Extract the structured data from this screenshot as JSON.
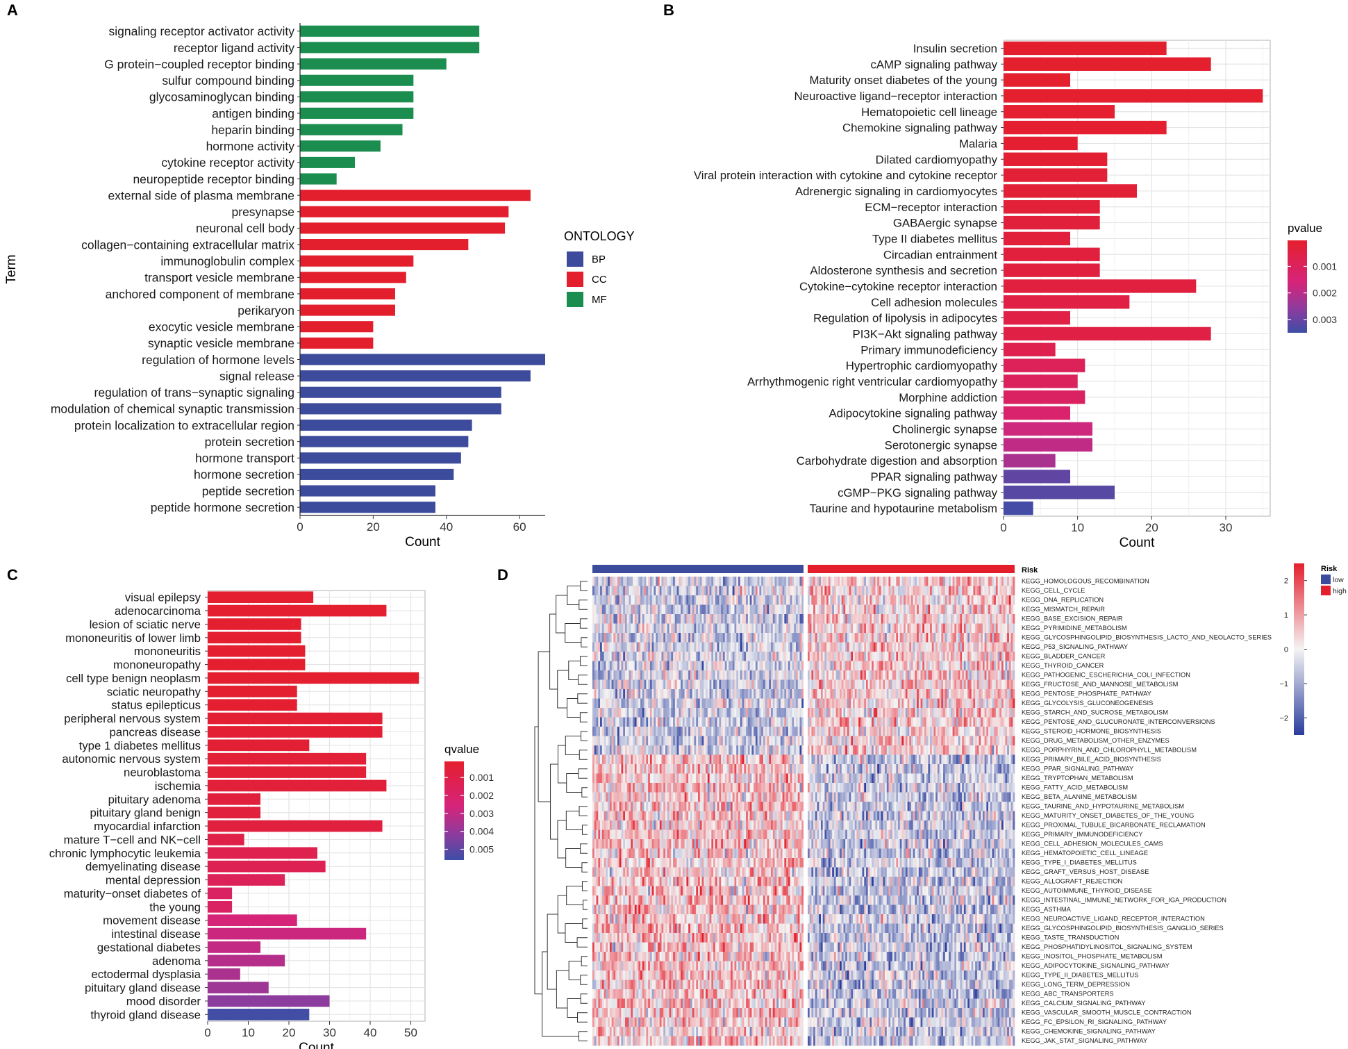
{
  "figure": {
    "panel_labels": [
      "A",
      "B",
      "C",
      "D"
    ]
  },
  "chart_data": [
    {
      "id": "A",
      "type": "bar",
      "orientation": "horizontal",
      "ylabel": "Term",
      "xlabel": "Count",
      "xlim": [
        0,
        67
      ],
      "xticks": [
        0,
        20,
        40,
        60
      ],
      "grid": false,
      "legend": {
        "title": "ONTOLOGY",
        "placement": "right",
        "items": [
          {
            "label": "BP",
            "color": "#3C4B9B"
          },
          {
            "label": "CC",
            "color": "#E41F2D"
          },
          {
            "label": "MF",
            "color": "#1A8D4F"
          }
        ]
      },
      "categories": [
        "signaling receptor activator activity",
        "receptor ligand activity",
        "G protein−coupled receptor binding",
        "sulfur compound binding",
        "glycosaminoglycan binding",
        "antigen binding",
        "heparin binding",
        "hormone activity",
        "cytokine receptor activity",
        "neuropeptide receptor binding",
        "external side of plasma membrane",
        "presynapse",
        "neuronal cell body",
        "collagen−containing extracellular matrix",
        "immunoglobulin complex",
        "transport vesicle membrane",
        "anchored component of membrane",
        "perikaryon",
        "exocytic vesicle membrane",
        "synaptic vesicle membrane",
        "regulation of hormone levels",
        "signal release",
        "regulation of trans−synaptic signaling",
        "modulation of chemical synaptic transmission",
        "protein localization to extracellular region",
        "protein secretion",
        "hormone transport",
        "hormone secretion",
        "peptide secretion",
        "peptide hormone secretion"
      ],
      "values": [
        49,
        49,
        40,
        31,
        31,
        31,
        28,
        22,
        15,
        10,
        63,
        57,
        56,
        46,
        31,
        29,
        26,
        26,
        20,
        20,
        67,
        63,
        55,
        55,
        47,
        46,
        44,
        42,
        37,
        37
      ],
      "groups": [
        "MF",
        "MF",
        "MF",
        "MF",
        "MF",
        "MF",
        "MF",
        "MF",
        "MF",
        "MF",
        "CC",
        "CC",
        "CC",
        "CC",
        "CC",
        "CC",
        "CC",
        "CC",
        "CC",
        "CC",
        "BP",
        "BP",
        "BP",
        "BP",
        "BP",
        "BP",
        "BP",
        "BP",
        "BP",
        "BP"
      ]
    },
    {
      "id": "B",
      "type": "bar",
      "orientation": "horizontal",
      "xlabel": "Count",
      "xlim": [
        0,
        36
      ],
      "xticks": [
        0,
        10,
        20,
        30
      ],
      "grid": true,
      "colorbar": {
        "title": "pvalue",
        "ticks": [
          "0.001",
          "0.002",
          "0.003"
        ],
        "range": [
          2e-05,
          0.0035
        ]
      },
      "categories": [
        "Insulin secretion",
        "cAMP signaling pathway",
        "Maturity onset diabetes of the young",
        "Neuroactive ligand−receptor interaction",
        "Hematopoietic cell lineage",
        "Chemokine signaling pathway",
        "Malaria",
        "Dilated cardiomyopathy",
        "Viral protein interaction with cytokine and cytokine receptor",
        "Adrenergic signaling in cardiomyocytes",
        "ECM−receptor interaction",
        "GABAergic synapse",
        "Type II diabetes mellitus",
        "Circadian entrainment",
        "Aldosterone synthesis and secretion",
        "Cytokine−cytokine receptor interaction",
        "Cell adhesion molecules",
        "Regulation of lipolysis in adipocytes",
        "PI3K−Akt signaling pathway",
        "Primary immunodeficiency",
        "Hypertrophic cardiomyopathy",
        "Arrhythmogenic right ventricular cardiomyopathy",
        "Morphine addiction",
        "Adipocytokine signaling pathway",
        "Cholinergic synapse",
        "Serotonergic synapse",
        "Carbohydrate digestion and absorption",
        "PPAR signaling pathway",
        "cGMP−PKG signaling pathway",
        "Taurine and hypotaurine metabolism"
      ],
      "values": [
        22,
        28,
        9,
        35,
        15,
        22,
        10,
        14,
        14,
        18,
        13,
        13,
        9,
        13,
        13,
        26,
        17,
        9,
        28,
        7,
        11,
        10,
        11,
        9,
        12,
        12,
        7,
        9,
        15,
        4
      ],
      "pvalues": [
        3e-05,
        4e-05,
        5e-05,
        5e-05,
        6e-05,
        8e-05,
        0.0001,
        0.00015,
        0.0002,
        0.0002,
        0.00025,
        0.0003,
        0.0003,
        0.00035,
        0.0004,
        0.0004,
        0.0005,
        0.0005,
        0.0005,
        0.0007,
        0.0009,
        0.001,
        0.0011,
        0.0013,
        0.0017,
        0.0019,
        0.0022,
        0.0031,
        0.0032,
        0.0034
      ]
    },
    {
      "id": "C",
      "type": "bar",
      "orientation": "horizontal",
      "xlabel": "Count",
      "xlim": [
        0,
        53.5
      ],
      "xticks": [
        0,
        10,
        20,
        30,
        40,
        50
      ],
      "grid": true,
      "colorbar": {
        "title": "qvalue",
        "ticks": [
          "0.001",
          "0.002",
          "0.003",
          "0.004",
          "0.005"
        ],
        "range": [
          0.0001,
          0.0056
        ]
      },
      "categories": [
        "visual epilepsy",
        "adenocarcinoma",
        "lesion of sciatic nerve",
        "mononeuritis of lower limb",
        "mononeuritis",
        "mononeuropathy",
        "cell type benign neoplasm",
        "sciatic neuropathy",
        "status epilepticus",
        "peripheral nervous system",
        "pancreas disease",
        "type 1 diabetes mellitus",
        "autonomic nervous system",
        "neuroblastoma",
        "ischemia",
        "pituitary adenoma",
        "pituitary gland benign",
        "myocardial infarction",
        "mature T−cell and NK−cell",
        "chronic lymphocytic leukemia",
        "demyelinating disease",
        "mental depression",
        "maturity−onset diabetes of",
        "the young",
        "movement disease",
        "intestinal disease",
        "gestational diabetes",
        "adenoma",
        "ectodermal dysplasia",
        "pituitary gland disease",
        "mood disorder",
        "thyroid gland disease"
      ],
      "values": [
        26,
        44,
        23,
        23,
        24,
        24,
        52,
        22,
        22,
        43,
        43,
        25,
        39,
        39,
        44,
        13,
        13,
        43,
        9,
        27,
        29,
        19,
        6,
        6,
        22,
        39,
        13,
        19,
        8,
        15,
        30,
        25
      ],
      "qvalues": [
        0.0002,
        0.0002,
        0.0002,
        0.0002,
        0.0002,
        0.0002,
        0.0002,
        0.0002,
        0.0002,
        0.0003,
        0.0003,
        0.0003,
        0.0004,
        0.0004,
        0.0005,
        0.0006,
        0.0006,
        0.0007,
        0.001,
        0.0012,
        0.0013,
        0.0015,
        0.0018,
        0.0018,
        0.0025,
        0.0028,
        0.003,
        0.0033,
        0.0035,
        0.0038,
        0.0042,
        0.0055
      ]
    },
    {
      "id": "D",
      "type": "heatmap",
      "annotation": {
        "title": "Risk",
        "levels": [
          "low",
          "high"
        ],
        "colors": [
          "#3C4B9B",
          "#E41F2D"
        ],
        "n_low": 110,
        "n_high": 110
      },
      "colorbar": {
        "ticks": [
          2,
          1,
          0,
          -1,
          -2
        ],
        "labels": [
          "2",
          "1",
          "0",
          "−1",
          "−2"
        ],
        "range": [
          -2.5,
          2.5
        ]
      },
      "row_cluster_split": 19,
      "rows": [
        "KEGG_HOMOLOGOUS_RECOMBINATION",
        "KEGG_CELL_CYCLE",
        "KEGG_DNA_REPLICATION",
        "KEGG_MISMATCH_REPAIR",
        "KEGG_BASE_EXCISION_REPAIR",
        "KEGG_PYRIMIDINE_METABOLISM",
        "KEGG_GLYCOSPHINGOLIPID_BIOSYNTHESIS_LACTO_AND_NEOLACTO_SERIES",
        "KEGG_P53_SIGNALING_PATHWAY",
        "KEGG_BLADDER_CANCER",
        "KEGG_THYROID_CANCER",
        "KEGG_PATHOGENIC_ESCHERICHIA_COLI_INFECTION",
        "KEGG_FRUCTOSE_AND_MANNOSE_METABOLISM",
        "KEGG_PENTOSE_PHOSPHATE_PATHWAY",
        "KEGG_GLYCOLYSIS_GLUCONEOGENESIS",
        "KEGG_STARCH_AND_SUCROSE_METABOLISM",
        "KEGG_PENTOSE_AND_GLUCURONATE_INTERCONVERSIONS",
        "KEGG_STEROID_HORMONE_BIOSYNTHESIS",
        "KEGG_DRUG_METABOLISM_OTHER_ENZYMES",
        "KEGG_PORPHYRIN_AND_CHLOROPHYLL_METABOLISM",
        "KEGG_PRIMARY_BILE_ACID_BIOSYNTHESIS",
        "KEGG_PPAR_SIGNALING_PATHWAY",
        "KEGG_TRYPTOPHAN_METABOLISM",
        "KEGG_FATTY_ACID_METABOLISM",
        "KEGG_BETA_ALANINE_METABOLISM",
        "KEGG_TAURINE_AND_HYPOTAURINE_METABOLISM",
        "KEGG_MATURITY_ONSET_DIABETES_OF_THE_YOUNG",
        "KEGG_PROXIMAL_TUBULE_BICARBONATE_RECLAMATION",
        "KEGG_PRIMARY_IMMUNODEFICIENCY",
        "KEGG_CELL_ADHESION_MOLECULES_CAMS",
        "KEGG_HEMATOPOIETIC_CELL_LINEAGE",
        "KEGG_TYPE_I_DIABETES_MELLITUS",
        "KEGG_GRAFT_VERSUS_HOST_DISEASE",
        "KEGG_ALLOGRAFT_REJECTION",
        "KEGG_AUTOIMMUNE_THYROID_DISEASE",
        "KEGG_INTESTINAL_IMMUNE_NETWORK_FOR_IGA_PRODUCTION",
        "KEGG_ASTHMA",
        "KEGG_NEUROACTIVE_LIGAND_RECEPTOR_INTERACTION",
        "KEGG_GLYCOSPHINGOLIPID_BIOSYNTHESIS_GANGLIO_SERIES",
        "KEGG_TASTE_TRANSDUCTION",
        "KEGG_PHOSPHATIDYLINOSITOL_SIGNALING_SYSTEM",
        "KEGG_INOSITOL_PHOSPHATE_METABOLISM",
        "KEGG_ADIPOCYTOKINE_SIGNALING_PATHWAY",
        "KEGG_TYPE_II_DIABETES_MELLITUS",
        "KEGG_LONG_TERM_DEPRESSION",
        "KEGG_ABC_TRANSPORTERS",
        "KEGG_CALCIUM_SIGNALING_PATHWAY",
        "KEGG_VASCULAR_SMOOTH_MUSCLE_CONTRACTION",
        "KEGG_FC_EPSILON_RI_SIGNALING_PATHWAY",
        "KEGG_CHEMOKINE_SIGNALING_PATHWAY",
        "KEGG_JAK_STAT_SIGNALING_PATHWAY"
      ]
    }
  ]
}
